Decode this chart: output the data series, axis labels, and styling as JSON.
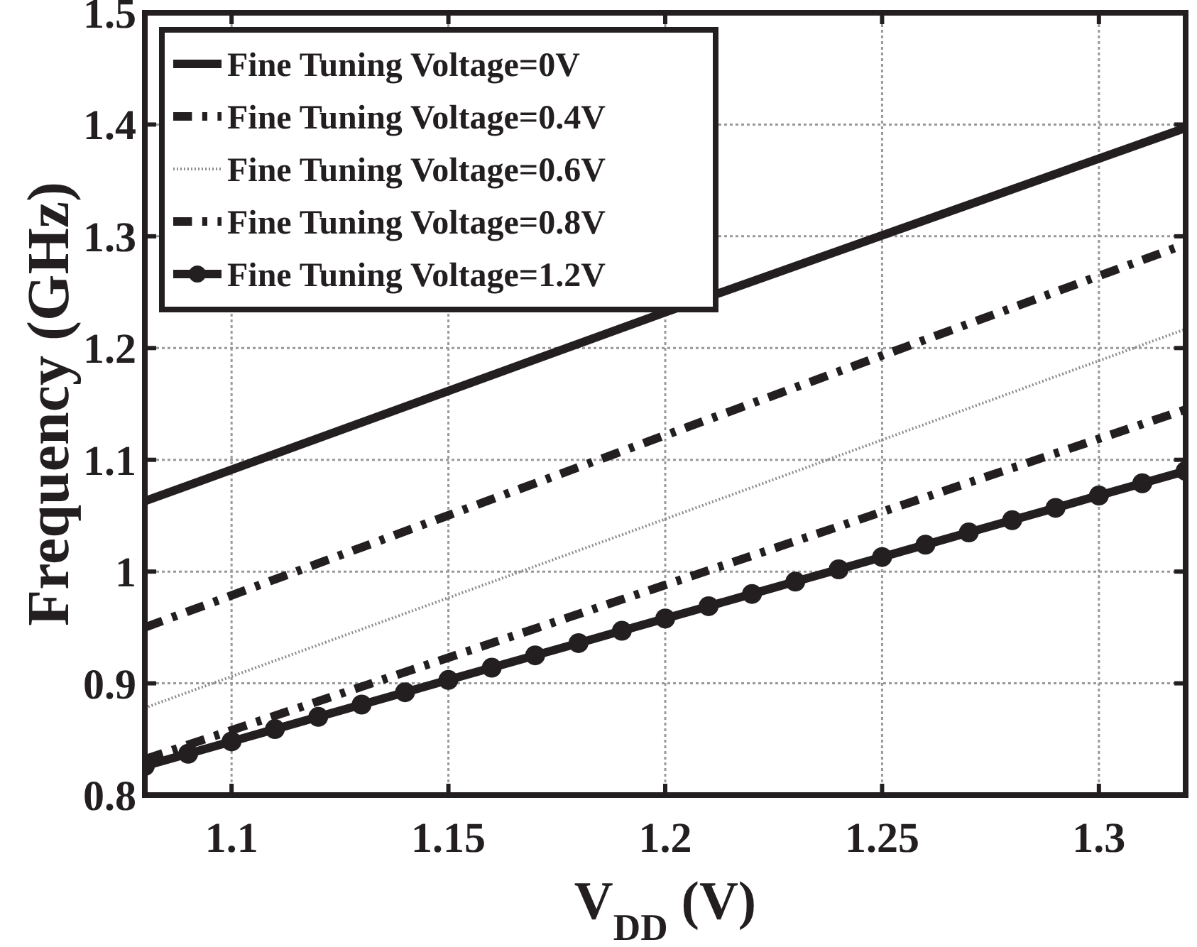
{
  "chart_data": {
    "type": "line",
    "xlabel": "V$_{DD}$ (V)",
    "ylabel": "Frequency (GHz)",
    "xlim": [
      1.08,
      1.32
    ],
    "xticks": [
      1.1,
      1.15,
      1.2,
      1.25,
      1.3
    ],
    "ylim": [
      0.8,
      1.5
    ],
    "yticks": [
      0.8,
      0.9,
      1,
      1.1,
      1.2,
      1.3,
      1.4,
      1.5
    ],
    "grid": true,
    "legend": "top left",
    "series": [
      {
        "name": "Fine Tuning Voltage=0V",
        "color": "#231f20",
        "line_style": "solid",
        "marker": "none",
        "x": [
          1.08,
          1.2,
          1.32
        ],
        "values": [
          1.063,
          1.232,
          1.397
        ]
      },
      {
        "name": "Fine Tuning Voltage=0.4V",
        "color": "#231f20",
        "line_style": "dashed",
        "marker": "none",
        "x": [
          1.08,
          1.2,
          1.32
        ],
        "values": [
          0.95,
          1.122,
          1.293
        ]
      },
      {
        "name": "Fine Tuning Voltage=0.6V",
        "color": "#8c8c8c",
        "line_style": "dotted",
        "marker": "none",
        "x": [
          1.08,
          1.2,
          1.32
        ],
        "values": [
          0.878,
          1.047,
          1.217
        ]
      },
      {
        "name": "Fine Tuning Voltage=0.8V",
        "color": "#231f20",
        "line_style": "dashed",
        "marker": "none",
        "x": [
          1.08,
          1.2,
          1.32
        ],
        "values": [
          0.832,
          0.988,
          1.145
        ]
      },
      {
        "name": "Fine Tuning Voltage=1.2V",
        "color": "#231f20",
        "line_style": "solid",
        "marker": "circle",
        "x": [
          1.08,
          1.09,
          1.1,
          1.11,
          1.12,
          1.13,
          1.14,
          1.15,
          1.16,
          1.17,
          1.18,
          1.19,
          1.2,
          1.21,
          1.22,
          1.23,
          1.24,
          1.25,
          1.26,
          1.27,
          1.28,
          1.29,
          1.3,
          1.31,
          1.32
        ],
        "values": [
          0.826,
          0.837,
          0.848,
          0.859,
          0.87,
          0.881,
          0.892,
          0.903,
          0.914,
          0.925,
          0.936,
          0.947,
          0.958,
          0.969,
          0.98,
          0.991,
          1.002,
          1.013,
          1.024,
          1.035,
          1.046,
          1.057,
          1.068,
          1.079,
          1.09
        ]
      }
    ]
  }
}
